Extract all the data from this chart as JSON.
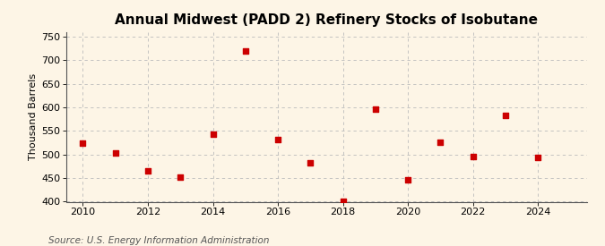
{
  "title": "Annual Midwest (PADD 2) Refinery Stocks of Isobutane",
  "ylabel": "Thousand Barrels",
  "source": "Source: U.S. Energy Information Administration",
  "background_color": "#fdf5e6",
  "years": [
    2010,
    2011,
    2012,
    2013,
    2014,
    2015,
    2016,
    2017,
    2018,
    2019,
    2020,
    2021,
    2022,
    2023,
    2024
  ],
  "values": [
    524,
    503,
    465,
    453,
    543,
    720,
    532,
    483,
    400,
    597,
    447,
    526,
    496,
    584,
    493
  ],
  "marker_color": "#cc0000",
  "marker_size": 18,
  "xlim": [
    2009.5,
    2025.5
  ],
  "ylim": [
    400,
    760
  ],
  "yticks": [
    400,
    450,
    500,
    550,
    600,
    650,
    700,
    750
  ],
  "xticks": [
    2010,
    2012,
    2014,
    2016,
    2018,
    2020,
    2022,
    2024
  ],
  "grid_color": "#bbbbbb",
  "title_fontsize": 11,
  "axis_fontsize": 8,
  "source_fontsize": 7.5
}
